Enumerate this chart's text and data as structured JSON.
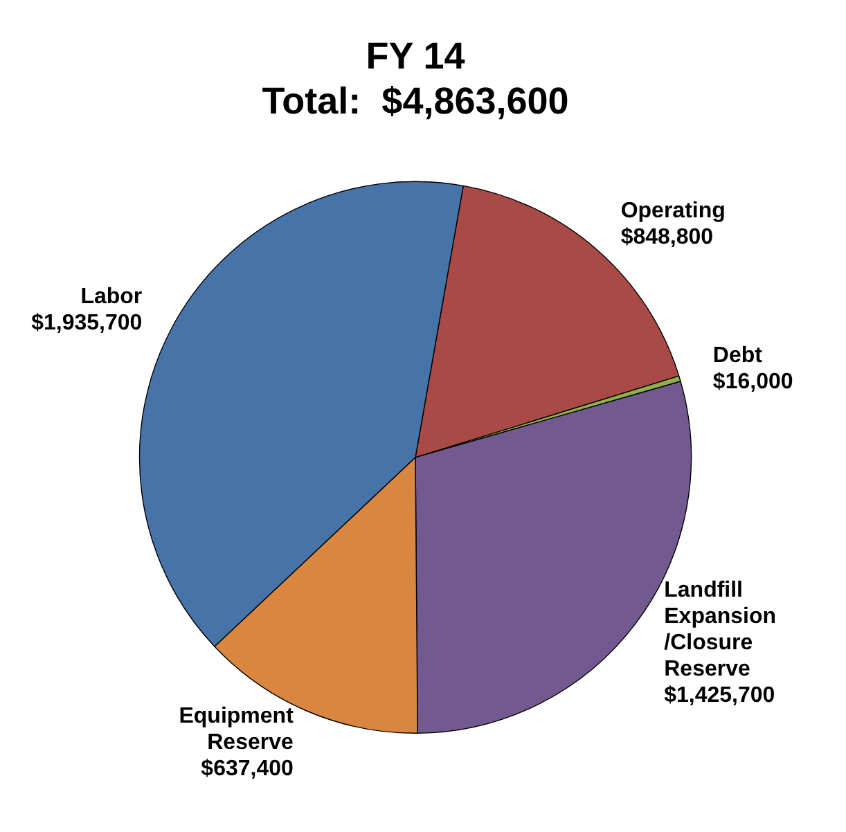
{
  "chart_data": {
    "type": "pie",
    "title": "FY 14",
    "subtitle": "Total:  $4,863,600",
    "categories": [
      "Operating",
      "Debt",
      "Landfill Expansion /Closure Reserve",
      "Equipment Reserve",
      "Labor"
    ],
    "values": [
      848800,
      16000,
      1425700,
      637400,
      1935700
    ],
    "value_labels": [
      "$848,800",
      "$16,000",
      "$1,425,700",
      "$637,400",
      "$1,935,700"
    ],
    "colors": [
      "#a94a46",
      "#8fb04a",
      "#725a91",
      "#d98640",
      "#4774a8"
    ],
    "legend": false
  }
}
